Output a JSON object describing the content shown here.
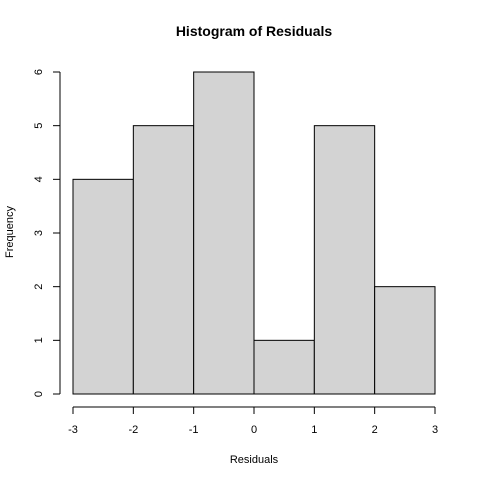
{
  "chart_data": {
    "type": "bar",
    "title": "Histogram of Residuals",
    "xlabel": "Residuals",
    "ylabel": "Frequency",
    "bins": [
      {
        "start": -3,
        "end": -2,
        "count": 4
      },
      {
        "start": -2,
        "end": -1,
        "count": 5
      },
      {
        "start": -1,
        "end": 0,
        "count": 6
      },
      {
        "start": 0,
        "end": 1,
        "count": 1
      },
      {
        "start": 1,
        "end": 2,
        "count": 5
      },
      {
        "start": 2,
        "end": 3,
        "count": 2
      }
    ],
    "xlim": [
      -3,
      3
    ],
    "ylim": [
      0,
      6
    ],
    "x_ticks": [
      "-3",
      "-2",
      "-1",
      "0",
      "1",
      "2",
      "3"
    ],
    "y_ticks": [
      "0",
      "1",
      "2",
      "3",
      "4",
      "5",
      "6"
    ],
    "grid": false,
    "legend": "none"
  }
}
